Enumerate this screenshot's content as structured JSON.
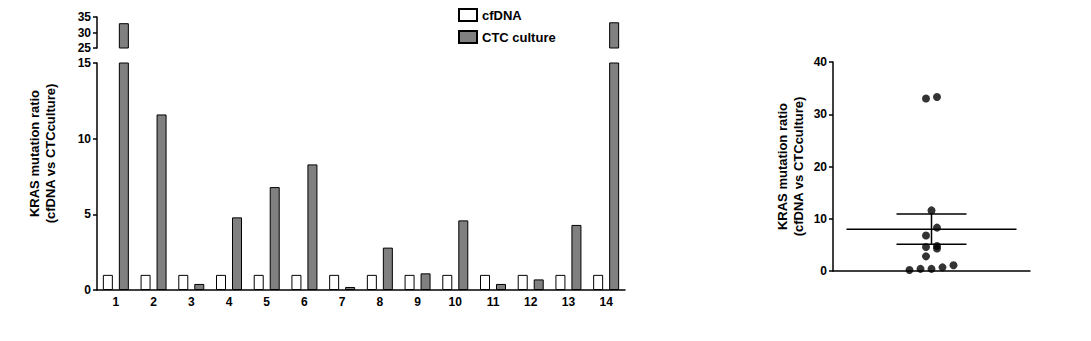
{
  "chart_data": [
    {
      "type": "bar",
      "y_label": "KRAS mutation ratio\n(cfDNA vs CTCculture)",
      "categories": [
        "1",
        "2",
        "3",
        "4",
        "5",
        "6",
        "7",
        "8",
        "9",
        "10",
        "11",
        "12",
        "13",
        "14"
      ],
      "series": [
        {
          "name": "cfDNA",
          "color": "#ffffff",
          "values": [
            1,
            1,
            1,
            1,
            1,
            1,
            1,
            1,
            1,
            1,
            1,
            1,
            1,
            1
          ]
        },
        {
          "name": "CTC culture",
          "color": "#808080",
          "values": [
            33,
            11.6,
            0.4,
            4.8,
            6.8,
            8.3,
            0.2,
            2.8,
            1.1,
            4.6,
            0.4,
            0.7,
            4.3,
            33.3
          ]
        }
      ],
      "ylim": [
        0,
        35
      ],
      "yticks": [
        0,
        5,
        10,
        15,
        25,
        30,
        35
      ],
      "legend": "upper right"
    },
    {
      "type": "scatter",
      "y_label": "KRAS mutation ratio\n(cfDNA vs CTCculture)",
      "values": [
        33,
        11.6,
        0.4,
        4.8,
        6.8,
        8.3,
        0.2,
        2.8,
        1.1,
        4.6,
        0.4,
        0.7,
        4.3,
        33.3
      ],
      "color": "#000000",
      "mean": 8.0,
      "error": 2.9,
      "ylim": [
        0,
        40
      ],
      "yticks": [
        0,
        10,
        20,
        30,
        40
      ]
    }
  ]
}
